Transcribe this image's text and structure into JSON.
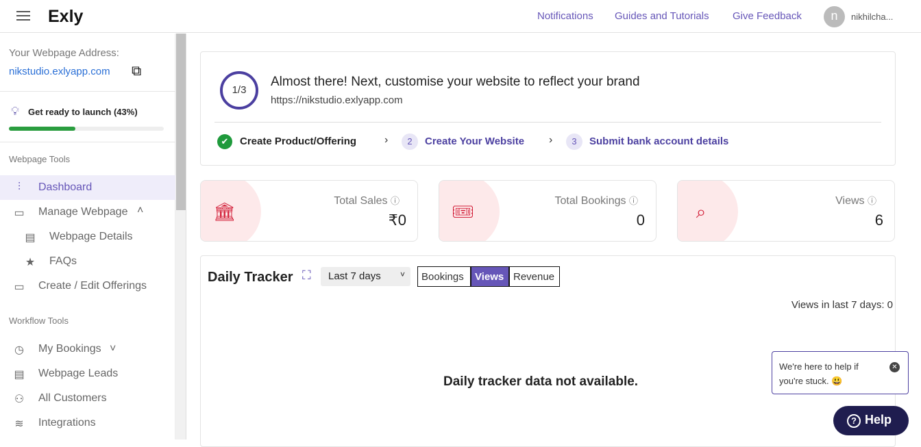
{
  "header": {
    "logo": "Exly",
    "links": [
      "Notifications",
      "Guides and Tutorials",
      "Give Feedback"
    ],
    "avatar_initial": "n",
    "username": "nikhilcha..."
  },
  "sidebar": {
    "address_label": "Your Webpage Address:",
    "address": "nikstudio.exlyapp.com",
    "launch_label": "Get ready to launch (43%)",
    "launch_progress": 43,
    "sections": [
      "Webpage Tools",
      "Workflow Tools"
    ],
    "items": [
      {
        "label": "Dashboard",
        "icon": "sliders-icon",
        "active": true
      },
      {
        "label": "Manage Webpage",
        "icon": "monitor-icon"
      },
      {
        "label": "Webpage Details",
        "icon": "browser-icon"
      },
      {
        "label": "FAQs",
        "icon": "star-icon"
      },
      {
        "label": "Create / Edit Offerings",
        "icon": "presentation-icon"
      },
      {
        "label": "My Bookings",
        "icon": "clock-icon"
      },
      {
        "label": "Webpage Leads",
        "icon": "window-icon"
      },
      {
        "label": "All Customers",
        "icon": "people-icon"
      },
      {
        "label": "Integrations",
        "icon": "stack-icon"
      }
    ]
  },
  "onboarding": {
    "step": "1/3",
    "title": "Almost there! Next, customise your website to reflect your brand",
    "url": "https://nikstudio.exlyapp.com",
    "steps": [
      {
        "num": "",
        "label": "Create Product/Offering",
        "done": true
      },
      {
        "num": "2",
        "label": "Create Your Website"
      },
      {
        "num": "3",
        "label": "Submit bank account details"
      }
    ]
  },
  "stats": [
    {
      "title": "Total Sales",
      "value": "₹0",
      "icon": "bank-icon"
    },
    {
      "title": "Total Bookings",
      "value": "0",
      "icon": "ticket-icon"
    },
    {
      "title": "Views",
      "value": "6",
      "icon": "search-screen-icon"
    }
  ],
  "tracker": {
    "title": "Daily Tracker",
    "range": "Last 7 days",
    "toggles": [
      "Bookings",
      "Views",
      "Revenue"
    ],
    "active_toggle": "Views",
    "summary": "Views in last 7 days: 0",
    "empty": "Daily tracker data not available."
  },
  "help": {
    "bubble": "We're here to help if you're stuck. 😃",
    "button": "Help"
  },
  "colors": {
    "accent": "#6656b8",
    "progress": "#2a9d3f",
    "stat_icon": "#d3213b",
    "help_btn": "#1f1d4f"
  }
}
